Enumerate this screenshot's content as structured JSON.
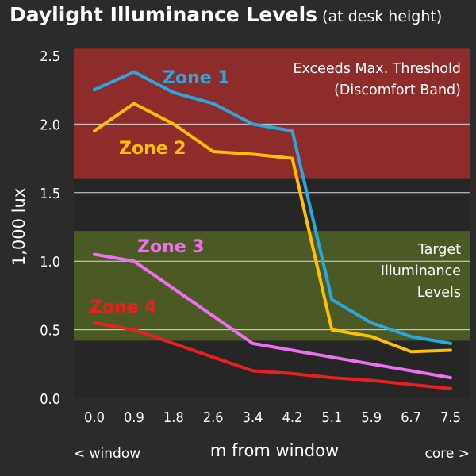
{
  "header": {
    "title": "Daylight Illuminance Levels",
    "subtitle": "(at desk height)"
  },
  "colors": {
    "background": "#2b2b2b",
    "plot_background": "#262626",
    "grid": "#d9d9d9",
    "band_exceeds": "#8e2b2b",
    "band_target": "#4b5a25",
    "zone1": "#29a8e0",
    "zone2": "#ffc000",
    "zone3": "#ee70ee",
    "zone4": "#ea2020"
  },
  "chart_data": {
    "type": "line",
    "title": "Daylight Illuminance Levels",
    "subtitle": "(at desk height)",
    "xlabel": "m from window",
    "ylabel": "1,000 lux",
    "x_left_note": "< window",
    "x_right_note": "core >",
    "categories": [
      "0.0",
      "0.9",
      "1.8",
      "2.6",
      "3.4",
      "4.2",
      "5.1",
      "5.9",
      "6.7",
      "7.5"
    ],
    "y_ticks": [
      "0.0",
      "0.5",
      "1.0",
      "1.5",
      "2.0",
      "2.5"
    ],
    "ylim": [
      0,
      2.5
    ],
    "grid": true,
    "bands": [
      {
        "name": "exceeds",
        "lines": [
          "Exceeds Max. Threshold",
          "(Discomfort Band)"
        ],
        "from": 1.6,
        "to": 2.55
      },
      {
        "name": "target",
        "lines": [
          "Target",
          "Illuminance",
          "Levels"
        ],
        "from": 0.42,
        "to": 1.22
      }
    ],
    "series": [
      {
        "name": "Zone 1",
        "values": [
          2.25,
          2.38,
          2.23,
          2.15,
          2.0,
          1.95,
          0.72,
          0.55,
          0.45,
          0.4
        ]
      },
      {
        "name": "Zone 2",
        "values": [
          1.95,
          2.15,
          2.0,
          1.8,
          1.78,
          1.75,
          0.5,
          0.45,
          0.34,
          0.35
        ]
      },
      {
        "name": "Zone 3",
        "values": [
          1.05,
          1.0,
          0.8,
          0.6,
          0.4,
          0.35,
          0.3,
          0.25,
          0.2,
          0.15
        ]
      },
      {
        "name": "Zone 4",
        "values": [
          0.55,
          0.5,
          0.4,
          0.3,
          0.2,
          0.18,
          0.15,
          0.13,
          0.1,
          0.07
        ]
      }
    ]
  }
}
